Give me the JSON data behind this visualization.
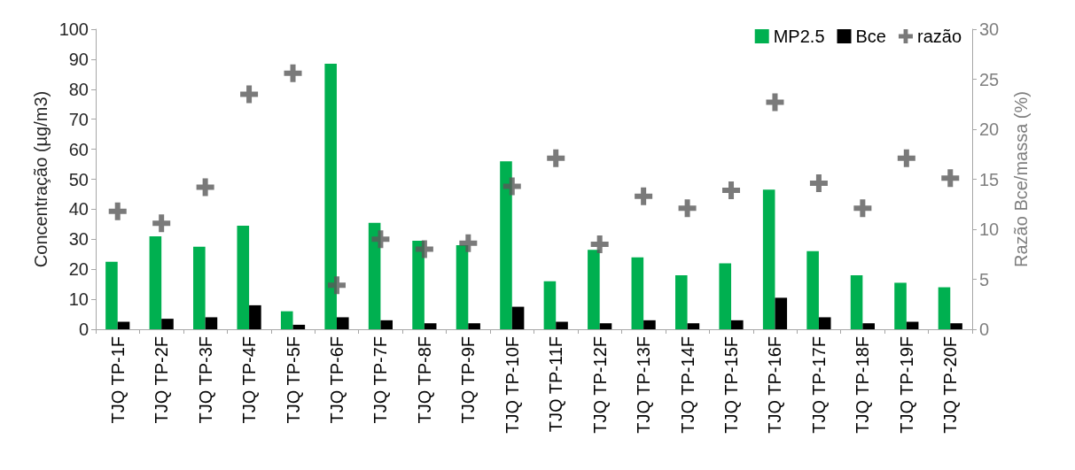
{
  "chart_data": {
    "type": "bar",
    "ylabel": "Concentração (µg/m3)",
    "y2label": "Razão Bce/massa (%)",
    "categories": [
      "TJQ TP-1F",
      "TJQ TP-2F",
      "TJQ TP-3F",
      "TJQ TP-4F",
      "TJQ TP-5F",
      "TJQ TP-6F",
      "TJQ TP-7F",
      "TJQ TP-8F",
      "TJQ TP-9F",
      "TJQ TP-10F",
      "TJQ TP-11F",
      "TJQ TP-12F",
      "TJQ TP-13F",
      "TJQ TP-14F",
      "TJQ TP-15F",
      "TJQ TP-16F",
      "TJQ TP-17F",
      "TJQ TP-18F",
      "TJQ TP-19F",
      "TJQ TP-20F"
    ],
    "series": [
      {
        "name": "MP2.5",
        "color": "#00b050",
        "values": [
          22.5,
          31,
          27.5,
          34.5,
          6,
          88.5,
          35.5,
          29.5,
          28,
          56,
          16,
          26.5,
          24,
          18,
          22,
          46.5,
          26,
          18,
          15.5,
          14
        ]
      },
      {
        "name": "Bce",
        "color": "#000000",
        "values": [
          2.5,
          3.5,
          4,
          8,
          1.5,
          4,
          3,
          2,
          2,
          7.5,
          2.5,
          2,
          3,
          2,
          3,
          10.5,
          4,
          2,
          2.5,
          2
        ]
      },
      {
        "name": "razão",
        "type": "scatter",
        "axis": "y2",
        "marker": "cross",
        "color": "#595959",
        "values": [
          11.8,
          10.6,
          14.2,
          23.5,
          25.6,
          4.4,
          9,
          8,
          8.6,
          14.3,
          17.1,
          8.5,
          13.3,
          12.1,
          13.9,
          22.7,
          14.6,
          12.1,
          17.1,
          15.1
        ]
      }
    ],
    "ylim": [
      0,
      100
    ],
    "yticks": [
      0,
      10,
      20,
      30,
      40,
      50,
      60,
      70,
      80,
      90,
      100
    ],
    "y2lim": [
      0,
      30
    ],
    "y2ticks": [
      0,
      5,
      10,
      15,
      20,
      25,
      30
    ],
    "grid": false,
    "legend": "top right"
  }
}
